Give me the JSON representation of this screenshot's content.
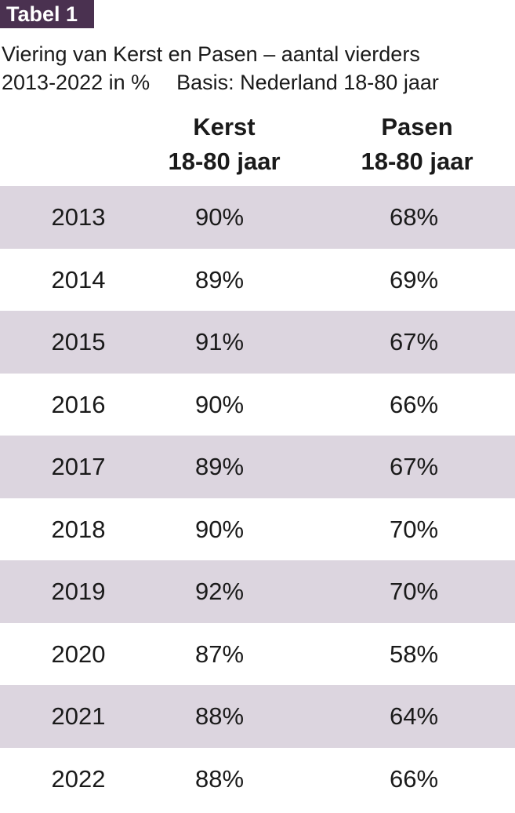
{
  "badge": "Tabel 1",
  "subtitle_line1": "Viering van Kerst en Pasen – aantal vierders",
  "subtitle_line2": "2013-2022 in %",
  "basis": "Basis: Nederland 18-80 jaar",
  "headers": {
    "kerst": {
      "line1": "Kerst",
      "line2": "18-80 jaar"
    },
    "pasen": {
      "line1": "Pasen",
      "line2": "18-80 jaar"
    }
  },
  "colors": {
    "badge": "#4a3150",
    "row_shade": "#dcd5df"
  },
  "chart_data": {
    "type": "table",
    "title": "Viering van Kerst en Pasen – aantal vierders",
    "columns": [
      "",
      "Kerst 18-80 jaar",
      "Pasen 18-80 jaar"
    ],
    "rows": [
      {
        "year": "2013",
        "kerst": "90%",
        "pasen": "68%"
      },
      {
        "year": "2014",
        "kerst": "89%",
        "pasen": "69%"
      },
      {
        "year": "2015",
        "kerst": "91%",
        "pasen": "67%"
      },
      {
        "year": "2016",
        "kerst": "90%",
        "pasen": "66%"
      },
      {
        "year": "2017",
        "kerst": "89%",
        "pasen": "67%"
      },
      {
        "year": "2018",
        "kerst": "90%",
        "pasen": "70%"
      },
      {
        "year": "2019",
        "kerst": "92%",
        "pasen": "70%"
      },
      {
        "year": "2020",
        "kerst": "87%",
        "pasen": "58%"
      },
      {
        "year": "2021",
        "kerst": "88%",
        "pasen": "64%"
      },
      {
        "year": "2022",
        "kerst": "88%",
        "pasen": "66%"
      }
    ]
  }
}
